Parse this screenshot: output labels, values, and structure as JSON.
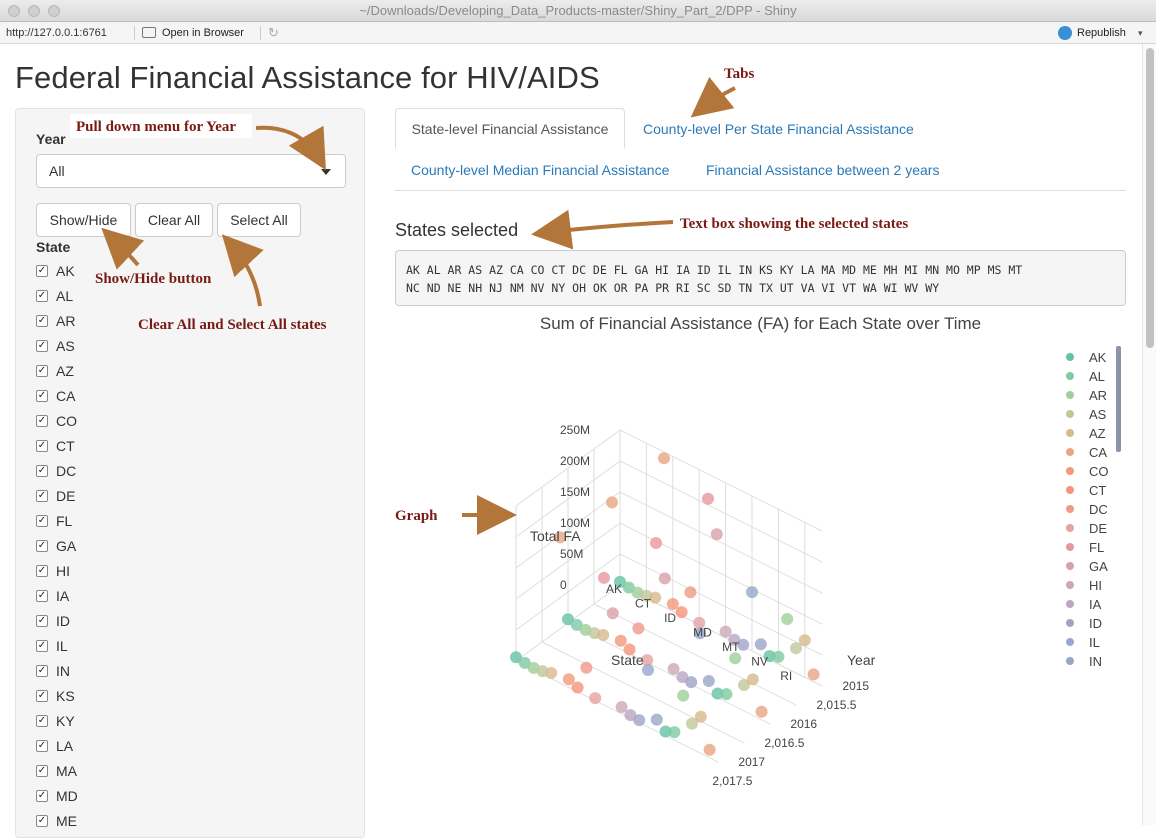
{
  "window": {
    "title": "~/Downloads/Developing_Data_Products-master/Shiny_Part_2/DPP - Shiny"
  },
  "toolbar": {
    "url": "http://127.0.0.1:6761",
    "open_in_browser": "Open in Browser",
    "republish": "Republish"
  },
  "page": {
    "title": "Federal Financial Assistance for HIV/AIDS"
  },
  "sidebar": {
    "year_label": "Year",
    "year_value": "All",
    "show_hide_label": "Show/Hide",
    "clear_all_label": "Clear All",
    "select_all_label": "Select All",
    "state_label": "State",
    "states": [
      "AK",
      "AL",
      "AR",
      "AS",
      "AZ",
      "CA",
      "CO",
      "CT",
      "DC",
      "DE",
      "FL",
      "GA",
      "HI",
      "IA",
      "ID",
      "IL",
      "IN",
      "KS",
      "KY",
      "LA",
      "MA",
      "MD",
      "ME"
    ]
  },
  "tabs": [
    {
      "label": "State-level Financial Assistance",
      "active": true
    },
    {
      "label": "County-level Per State Financial Assistance",
      "active": false
    },
    {
      "label": "County-level Median Financial Assistance",
      "active": false
    },
    {
      "label": "Financial Assistance between 2 years",
      "active": false
    }
  ],
  "selected": {
    "title": "States selected",
    "line1": "AK AL AR AS AZ CA CO CT DC DE FL GA HI IA ID IL IN KS KY LA MA MD ME MH MI MN MO MP MS MT",
    "line2": "NC ND NE NH NJ NM NV NY OH OK OR PA PR RI SC SD TN TX UT VA VI VT WA WI WV WY"
  },
  "annotations": {
    "tabs": "Tabs",
    "year_menu": "Pull down menu for Year",
    "text_box": "Text box showing the selected states",
    "show_hide": "Show/Hide button",
    "clear_select": "Clear All and Select All states",
    "graph": "Graph"
  },
  "chart_data": {
    "type": "scatter",
    "title": "Sum of Financial Assistance (FA) for Each State over Time",
    "zlabel": "Total FA",
    "ylabel": "State",
    "xlabel": "Year",
    "z_ticks": [
      "250M",
      "200M",
      "150M",
      "100M",
      "50M",
      "0"
    ],
    "state_ticks": [
      "AK",
      "CT",
      "ID",
      "MD",
      "MT",
      "NV",
      "RI"
    ],
    "year_ticks": [
      "2015",
      "2,015.5",
      "2016",
      "2,016.5",
      "2017",
      "2,017.5"
    ],
    "legend": [
      "AK",
      "AL",
      "AR",
      "AS",
      "AZ",
      "CA",
      "CO",
      "CT",
      "DC",
      "DE",
      "FL",
      "GA",
      "HI",
      "IA",
      "ID",
      "IL",
      "IN"
    ],
    "legend_colors": [
      "#66c2a5",
      "#7fc9a3",
      "#9fcf9a",
      "#bfc89a",
      "#d8b98c",
      "#e9a582",
      "#f39a7c",
      "#f59478",
      "#ee9a8a",
      "#e6a3a3",
      "#e6999d",
      "#d9a0a9",
      "#cca7b4",
      "#b8a8c1",
      "#9fa4c7",
      "#9aa6cc",
      "#9aa6c8"
    ],
    "series": [
      {
        "name": "2015",
        "values": [
          5,
          3,
          2,
          4,
          8,
          240,
          12,
          6,
          45,
          3,
          210,
          160,
          10,
          4,
          3,
          95,
          18,
          6,
          12,
          80,
          40,
          60,
          12
        ]
      },
      {
        "name": "2016",
        "values": [
          6,
          4,
          3,
          5,
          9,
          230,
          14,
          7,
          48,
          4,
          200,
          150,
          11,
          5,
          4,
          90,
          20,
          7,
          13,
          78,
          42,
          58,
          13
        ]
      },
      {
        "name": "2017",
        "values": [
          6,
          4,
          3,
          5,
          9,
          235,
          13,
          7,
          46,
          4,
          205,
          155,
          11,
          5,
          4,
          92,
          19,
          7,
          13,
          79,
          41,
          59,
          13
        ]
      }
    ]
  }
}
